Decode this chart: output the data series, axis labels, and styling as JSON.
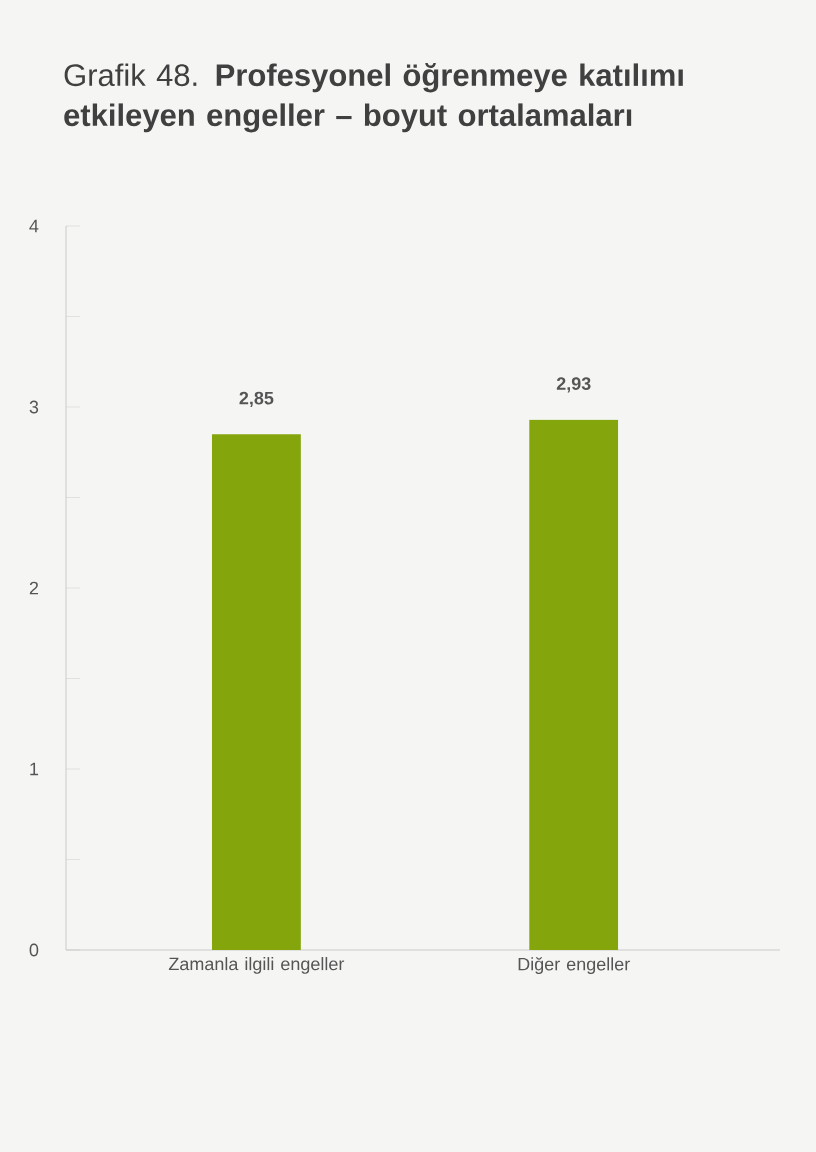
{
  "chart_data": {
    "type": "bar",
    "title": "Grafik 48. **Profesyonel öğrenmeye katılımı etkileyen engeller – boyut ortalamaları**",
    "categories": [
      "Zamanla ilgili engeller",
      "Diğer engeller"
    ],
    "values": [
      2.85,
      2.93
    ],
    "color": "#84a50c",
    "value_labels": [
      "2,85",
      "2,93"
    ],
    "ylim": [
      0,
      4
    ],
    "yticks": [
      0,
      {
        "value": 0.5,
        "label": null
      },
      1,
      {
        "value": 1.5,
        "label": null
      },
      2,
      {
        "value": 2.5,
        "label": null
      },
      3,
      {
        "value": 3.5,
        "label": null
      },
      4
    ],
    "grid": false
  }
}
